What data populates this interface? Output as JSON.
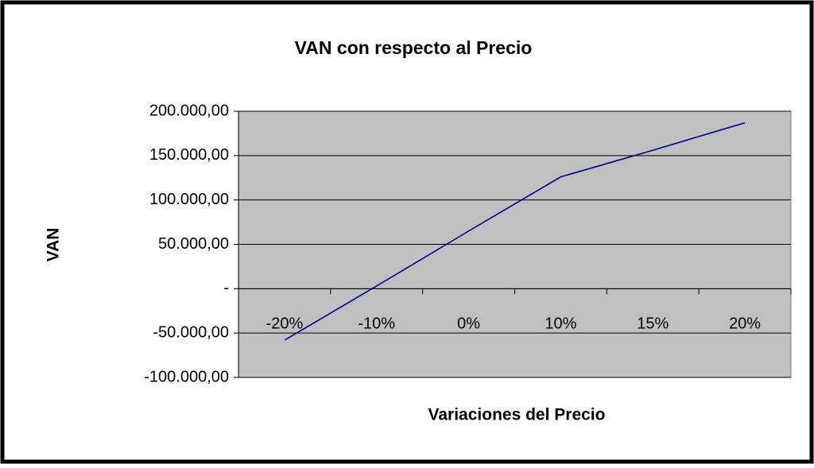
{
  "chart_data": {
    "type": "line",
    "title": "VAN con respecto al Precio",
    "xlabel": "Variaciones del Precio",
    "ylabel": "VAN",
    "categories": [
      "-20%",
      "-10%",
      "0%",
      "10%",
      "15%",
      "20%"
    ],
    "series": [
      {
        "name": "VAN",
        "color": "#000080",
        "values": [
          -58000,
          3000,
          65000,
          126000,
          156000,
          187000
        ]
      }
    ],
    "ylim": [
      -100000,
      200000
    ],
    "yticks": [
      {
        "value": -100000,
        "label": "-100.000,00"
      },
      {
        "value": -50000,
        "label": "-50.000,00"
      },
      {
        "value": 0,
        "label": "-"
      },
      {
        "value": 50000,
        "label": "50.000,00"
      },
      {
        "value": 100000,
        "label": "100.000,00"
      },
      {
        "value": 150000,
        "label": "150.000,00"
      },
      {
        "value": 200000,
        "label": "200.000,00"
      }
    ],
    "grid": true
  }
}
